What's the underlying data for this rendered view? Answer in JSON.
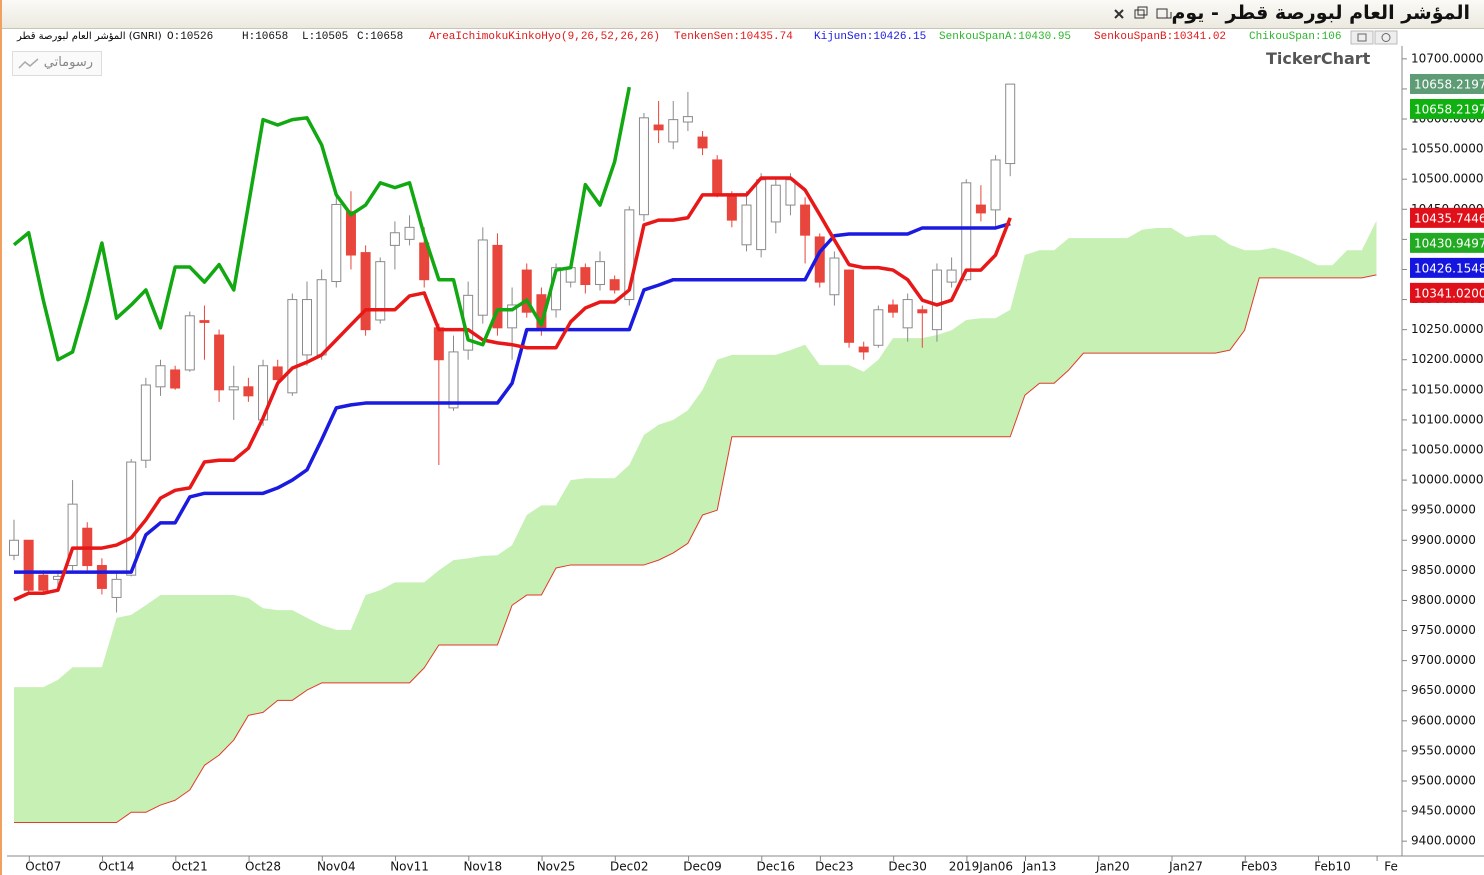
{
  "chart_data": {
    "type": "candlestick",
    "title": "المؤشر العام لبورصة قطر - يوم",
    "symbol": "المؤشر العام لبورصة قطر (GNRI)",
    "ohlc_readout": [
      "O:10526",
      "H:10658",
      "L:10505",
      "C:10658"
    ],
    "readouts": [
      {
        "text": "AreaIchimokuKinkoHyo(9,26,52,26,26)",
        "color": "#e01818"
      },
      {
        "text": "TenkenSen:10435.74",
        "color": "#e01818"
      },
      {
        "text": "KijunSen:10426.15",
        "color": "#1a1ae0"
      },
      {
        "text": "SenkouSpanA:10430.95",
        "color": "#2fb52f"
      },
      {
        "text": "SenkouSpanB:10341.02",
        "color": "#e01818"
      },
      {
        "text": "ChikouSpan:106",
        "color": "#2fb52f"
      }
    ],
    "button": "رسوماتي",
    "watermark": "TickerChart",
    "categories": [
      null,
      null,
      "Oct07",
      null,
      null,
      null,
      null,
      "Oct14",
      null,
      null,
      null,
      null,
      "Oct21",
      null,
      null,
      null,
      null,
      "Oct28",
      null,
      null,
      null,
      null,
      "Nov04",
      null,
      null,
      null,
      null,
      "Nov11",
      null,
      null,
      null,
      null,
      "Nov18",
      null,
      null,
      null,
      null,
      "Nov25",
      null,
      null,
      null,
      null,
      "Dec02",
      null,
      null,
      null,
      null,
      "Dec09",
      null,
      null,
      null,
      null,
      "Dec16",
      null,
      null,
      null,
      "Dec23",
      null,
      null,
      null,
      null,
      "Dec30",
      null,
      null,
      null,
      null,
      "2019Jan06",
      null,
      null,
      null,
      "Jan13",
      null,
      null,
      null,
      null,
      "Jan20",
      null,
      null,
      null,
      null,
      "Jan27",
      null,
      null,
      null,
      null,
      "Feb03",
      null,
      null,
      null,
      null,
      "Feb10",
      null,
      null,
      null,
      "Fe"
    ],
    "open": [
      9875,
      9900,
      9842,
      9835,
      9858,
      9920,
      9858,
      9805,
      9842,
      10033,
      10155,
      10183,
      10183,
      10265,
      10241,
      10150,
      10155,
      10100,
      10188,
      10145,
      10208,
      10208,
      10330,
      10446,
      10378,
      10266,
      10390,
      10400,
      10394,
      10253,
      10120,
      10216,
      10274,
      10390,
      10253,
      10349,
      10308,
      10283,
      10329,
      10353,
      10325,
      10333,
      10300,
      10441,
      10590,
      10562,
      10595,
      10570,
      10532,
      10474,
      10391,
      10383,
      10429,
      10457,
      10457,
      10404,
      10308,
      10349,
      10221,
      10224,
      10291,
      10253,
      10283,
      10250,
      10329,
      10333,
      10457,
      10449,
      10526,
      null,
      null,
      null,
      null,
      null,
      null,
      null,
      null,
      null,
      null,
      null,
      null,
      null,
      null,
      null,
      null,
      null,
      null,
      null,
      null,
      null,
      null,
      null,
      null,
      null,
      null
    ],
    "high": [
      9934,
      9900,
      9850,
      9850,
      10000,
      9930,
      9870,
      9845,
      10035,
      10170,
      10200,
      10190,
      10280,
      10290,
      10250,
      10190,
      10170,
      10200,
      10200,
      10310,
      10330,
      10350,
      10470,
      10480,
      10390,
      10370,
      10430,
      10440,
      10420,
      10260,
      10240,
      10330,
      10420,
      10410,
      10320,
      10360,
      10320,
      10360,
      10365,
      10360,
      10380,
      10340,
      10455,
      10610,
      10630,
      10630,
      10645,
      10580,
      10540,
      10480,
      10480,
      10510,
      10500,
      10510,
      10470,
      10410,
      10380,
      10350,
      10230,
      10290,
      10300,
      10310,
      10290,
      10360,
      10370,
      10500,
      10490,
      10540,
      10658,
      null,
      null,
      null,
      null,
      null,
      null,
      null,
      null,
      null,
      null,
      null,
      null,
      null,
      null,
      null,
      null,
      null,
      null,
      null,
      null,
      null,
      null,
      null,
      null,
      null,
      null
    ],
    "low": [
      9867,
      9810,
      9810,
      9820,
      9850,
      9850,
      9810,
      9780,
      9840,
      10020,
      10140,
      10150,
      10180,
      10200,
      10130,
      10100,
      10130,
      10090,
      10160,
      10140,
      10190,
      10200,
      10320,
      10350,
      10240,
      10260,
      10350,
      10390,
      10320,
      10025,
      10115,
      10200,
      10260,
      10240,
      10200,
      10270,
      10240,
      10270,
      10320,
      10310,
      10315,
      10310,
      10290,
      10430,
      10560,
      10550,
      10580,
      10540,
      10470,
      10420,
      10380,
      10370,
      10410,
      10440,
      10360,
      10320,
      10290,
      10220,
      10200,
      10220,
      10270,
      10230,
      10220,
      10230,
      10320,
      10330,
      10430,
      10420,
      10505,
      null,
      null,
      null,
      null,
      null,
      null,
      null,
      null,
      null,
      null,
      null,
      null,
      null,
      null,
      null,
      null,
      null,
      null,
      null,
      null,
      null,
      null,
      null,
      null,
      null,
      null
    ],
    "close": [
      9900,
      9817,
      9817,
      9840,
      9960,
      9858,
      9820,
      9835,
      10030,
      10158,
      10190,
      10153,
      10273,
      10262,
      10150,
      10155,
      10140,
      10190,
      10167,
      10300,
      10300,
      10333,
      10458,
      10374,
      10250,
      10363,
      10411,
      10420,
      10333,
      10200,
      10213,
      10307,
      10399,
      10253,
      10291,
      10279,
      10253,
      10353,
      10353,
      10325,
      10363,
      10316,
      10449,
      10602,
      10582,
      10599,
      10604,
      10552,
      10477,
      10432,
      10457,
      10499,
      10490,
      10499,
      10407,
      10329,
      10369,
      10229,
      10213,
      10283,
      10279,
      10300,
      10278,
      10349,
      10349,
      10494,
      10444,
      10532,
      10658,
      null,
      null,
      null,
      null,
      null,
      null,
      null,
      null,
      null,
      null,
      null,
      null,
      null,
      null,
      null,
      null,
      null,
      null,
      null,
      null,
      null,
      null,
      null,
      null,
      null,
      null
    ],
    "up_color": "#ffffff",
    "up_edge": "#8a8a8a",
    "down_color": "#e8453c",
    "tenkan_sen": {
      "color": "#e81818",
      "values": [
        9801,
        9812,
        9812,
        9817,
        9887,
        9887,
        9887,
        9892,
        9904,
        9934,
        9970,
        9983,
        9987,
        10030,
        10033,
        10033,
        10053,
        10103,
        10161,
        10186,
        10196,
        10208,
        10233,
        10258,
        10283,
        10283,
        10283,
        10306,
        10311,
        10250,
        10250,
        10250,
        10233,
        10228,
        10225,
        10220,
        10220,
        10220,
        10263,
        10286,
        10296,
        10296,
        10316,
        10424,
        10432,
        10432,
        10436,
        10474,
        10474,
        10474,
        10474,
        10502,
        10502,
        10502,
        10482,
        10441,
        10399,
        10358,
        10353,
        10353,
        10349,
        10333,
        10299,
        10291,
        10299,
        10349,
        10349,
        10374,
        10435.74,
        null,
        null,
        null,
        null,
        null,
        null,
        null,
        null,
        null,
        null,
        null,
        null,
        null,
        null,
        null,
        null,
        null,
        null,
        null,
        null,
        null,
        null,
        null,
        null,
        null,
        null
      ]
    },
    "kijun_sen": {
      "color": "#1a1ae0",
      "values": [
        9847,
        9847,
        9847,
        9847,
        9847,
        9847,
        9847,
        9847,
        9847,
        9909,
        9929,
        9929,
        9972,
        9978,
        9978,
        9978,
        9978,
        9978,
        9987,
        10000,
        10017,
        10067,
        10120,
        10125,
        10128,
        10128,
        10128,
        10128,
        10128,
        10128,
        10128,
        10128,
        10128,
        10128,
        10161,
        10250,
        10250,
        10250,
        10250,
        10250,
        10250,
        10250,
        10250,
        10316,
        10324,
        10333,
        10333,
        10333,
        10333,
        10333,
        10333,
        10333,
        10333,
        10333,
        10333,
        10379,
        10406,
        10409,
        10409,
        10409,
        10409,
        10409,
        10419,
        10419,
        10419,
        10419,
        10419,
        10419,
        10426.15,
        null,
        null,
        null,
        null,
        null,
        null,
        null,
        null,
        null,
        null,
        null,
        null,
        null,
        null,
        null,
        null,
        null,
        null,
        null,
        null,
        null,
        null,
        null,
        null,
        null,
        null
      ]
    },
    "chikou_span": {
      "color": "#11a811",
      "values": [
        10391,
        10411,
        10299,
        10200,
        10213,
        10299,
        10394,
        10269,
        10291,
        10316,
        10253,
        10354,
        10354,
        10329,
        10358,
        10316,
        10457,
        10599,
        10590,
        10599,
        10602,
        10557,
        10474,
        10441,
        10457,
        10494,
        10486,
        10494,
        10407,
        10333,
        10333,
        10233,
        10225,
        10283,
        10283,
        10299,
        10258,
        10349,
        10353,
        10491,
        10457,
        10529,
        10653,
        null,
        null,
        null,
        null,
        null,
        null,
        null,
        null,
        null,
        null,
        null,
        null,
        null,
        null,
        null,
        null,
        null,
        null,
        null,
        null,
        null,
        null,
        null,
        null,
        null,
        null,
        null,
        null,
        null,
        null,
        null,
        null,
        null,
        null,
        null,
        null,
        null,
        null,
        null,
        null,
        null,
        null,
        null,
        null,
        null,
        null,
        null,
        null,
        null,
        null,
        null,
        null
      ]
    },
    "senkou_span_a": {
      "color": "#c6f0b4",
      "values": [
        9656,
        9656,
        9656,
        9668,
        9689,
        9689,
        9689,
        9771,
        9776,
        9792,
        9809,
        9809,
        9809,
        9809,
        9809,
        9809,
        9804,
        9787,
        9784,
        9784,
        9771,
        9759,
        9751,
        9751,
        9809,
        9817,
        9830,
        9830,
        9830,
        9850,
        9867,
        9870,
        9874,
        9875,
        9892,
        9942,
        9958,
        9958,
        10000,
        10003,
        10003,
        10003,
        10025,
        10075,
        10092,
        10100,
        10116,
        10150,
        10200,
        10208,
        10208,
        10208,
        10208,
        10216,
        10225,
        10191,
        10191,
        10191,
        10180,
        10200,
        10236,
        10236,
        10236,
        10241,
        10249,
        10266,
        10269,
        10269,
        10283,
        10374,
        10382,
        10382,
        10402,
        10402,
        10402,
        10402,
        10402,
        10416,
        10419,
        10419,
        10404,
        10407,
        10407,
        10391,
        10382,
        10382,
        10386,
        10379,
        10369,
        10357,
        10357,
        10382,
        10382,
        10430.95,
        null
      ]
    },
    "senkou_span_b": {
      "color": "#e03a2a",
      "values": [
        9431,
        9431,
        9431,
        9431,
        9431,
        9431,
        9431,
        9431,
        9448,
        9448,
        9460,
        9468,
        9485,
        9526,
        9543,
        9568,
        9609,
        9614,
        9634,
        9634,
        9651,
        9663,
        9663,
        9663,
        9663,
        9663,
        9663,
        9663,
        9688,
        9726,
        9726,
        9726,
        9726,
        9726,
        9792,
        9809,
        9809,
        9854,
        9859,
        9859,
        9859,
        9859,
        9859,
        9859,
        9867,
        9879,
        9895,
        9942,
        9950,
        10072,
        10072,
        10072,
        10072,
        10072,
        10072,
        10072,
        10072,
        10072,
        10072,
        10072,
        10072,
        10072,
        10072,
        10072,
        10072,
        10072,
        10072,
        10072,
        10072,
        10141,
        10161,
        10161,
        10183,
        10211,
        10211,
        10211,
        10211,
        10211,
        10211,
        10211,
        10211,
        10211,
        10211,
        10216,
        10249,
        10336,
        10336,
        10336,
        10336,
        10336,
        10336,
        10336,
        10336,
        10341.02,
        null
      ]
    },
    "ylim": [
      9377,
      10723
    ],
    "yticks": [
      {
        "value": 9400,
        "label": "9400.0000"
      },
      {
        "value": 9450,
        "label": "9450.0000"
      },
      {
        "value": 9500,
        "label": "9500.0000"
      },
      {
        "value": 9550,
        "label": "9550.0000"
      },
      {
        "value": 9600,
        "label": "9600.0000"
      },
      {
        "value": 9650,
        "label": "9650.0000"
      },
      {
        "value": 9700,
        "label": "9700.0000"
      },
      {
        "value": 9750,
        "label": "9750.0000"
      },
      {
        "value": 9800,
        "label": "9800.0000"
      },
      {
        "value": 9850,
        "label": "9850.0000"
      },
      {
        "value": 9900,
        "label": "9900.0000"
      },
      {
        "value": 9950,
        "label": "9950.0000"
      },
      {
        "value": 10000,
        "label": "10000.0000"
      },
      {
        "value": 10050,
        "label": "10050.0000"
      },
      {
        "value": 10100,
        "label": "10100.0000"
      },
      {
        "value": 10150,
        "label": "10150.0000"
      },
      {
        "value": 10200,
        "label": "10200.0000"
      },
      {
        "value": 10250,
        "label": "10250.0000"
      },
      {
        "value": 10300,
        "label": "10300.0000"
      },
      {
        "value": 10350,
        "label": "10350.0000"
      },
      {
        "value": 10400,
        "label": "10400.0000"
      },
      {
        "value": 10450,
        "label": "10450.0000"
      },
      {
        "value": 10500,
        "label": "10500.0000"
      },
      {
        "value": 10550,
        "label": "10550.0000"
      },
      {
        "value": 10600,
        "label": "10600.0000"
      },
      {
        "value": 10650,
        "label": "10650.0000"
      },
      {
        "value": 10700,
        "label": "10700.0000"
      }
    ],
    "grid": false,
    "price_markers": [
      {
        "value": 10658.2197,
        "label": "10658.2197",
        "color": "#5e9c76"
      },
      {
        "value": 10658.2197,
        "label": "10658.2197",
        "color": "#10b010"
      },
      {
        "value": 10435.7446,
        "label": "10435.7446",
        "color": "#e0101a"
      },
      {
        "value": 10430.9497,
        "label": "10430.9497",
        "color": "#22aa22"
      },
      {
        "value": 10426.1548,
        "label": "10426.1548",
        "color": "#1515e0"
      },
      {
        "value": 10341.02,
        "label": "10341.0200",
        "color": "#e0101a"
      }
    ]
  }
}
